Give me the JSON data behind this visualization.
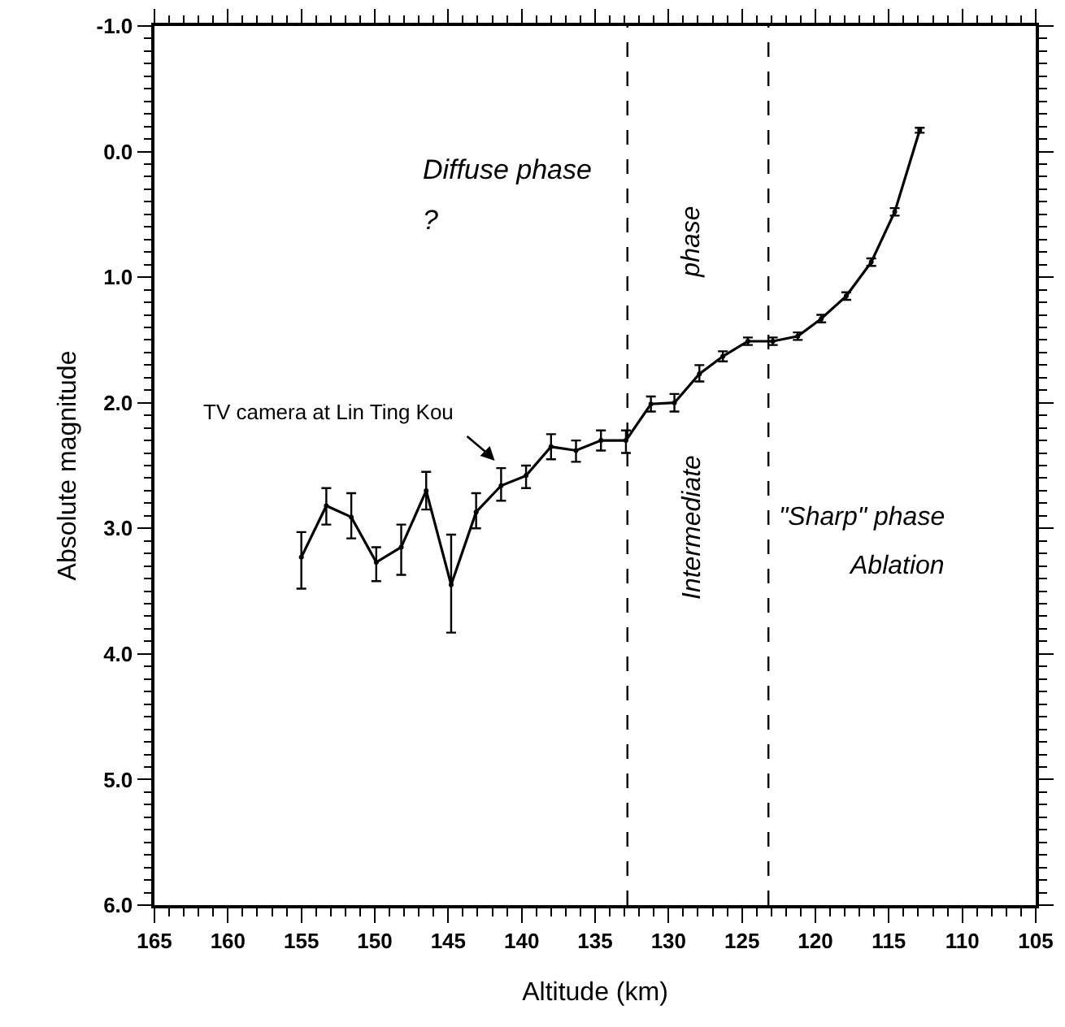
{
  "chart_data": {
    "type": "line",
    "xlabel": "Altitude (km)",
    "ylabel": "Absolute magnitude",
    "x": [
      155,
      153.3,
      151.6,
      149.9,
      148.2,
      146.5,
      144.8,
      143.1,
      141.4,
      139.7,
      138,
      136.3,
      134.6,
      132.9,
      131.2,
      129.6,
      127.9,
      126.3,
      124.6,
      122.9,
      121.2,
      119.6,
      117.9,
      116.2,
      114.6,
      112.9
    ],
    "series": [
      {
        "color": "#000000",
        "values": [
          3.23,
          2.82,
          2.91,
          3.27,
          3.15,
          2.7,
          3.45,
          2.87,
          2.66,
          2.58,
          2.35,
          2.38,
          2.3,
          2.3,
          2.01,
          2.0,
          1.77,
          1.63,
          1.51,
          1.51,
          1.47,
          1.33,
          1.15,
          0.88,
          0.48,
          -0.17
        ],
        "errors": [
          [
            3.03,
            3.48
          ],
          [
            2.68,
            2.97
          ],
          [
            2.72,
            3.08
          ],
          [
            3.15,
            3.42
          ],
          [
            2.97,
            3.37
          ],
          [
            2.55,
            2.85
          ],
          [
            3.05,
            3.83
          ],
          [
            2.72,
            3.0
          ],
          [
            2.52,
            2.78
          ],
          [
            2.5,
            2.68
          ],
          [
            2.25,
            2.45
          ],
          [
            2.3,
            2.47
          ],
          [
            2.22,
            2.38
          ],
          [
            2.22,
            2.4
          ],
          [
            1.95,
            2.07
          ],
          [
            1.93,
            2.07
          ],
          [
            1.7,
            1.83
          ],
          [
            1.59,
            1.67
          ],
          [
            1.48,
            1.54
          ],
          [
            1.48,
            1.54
          ],
          [
            1.44,
            1.5
          ],
          [
            1.3,
            1.36
          ],
          [
            1.12,
            1.18
          ],
          [
            0.85,
            0.91
          ],
          [
            0.45,
            0.51
          ],
          [
            -0.19,
            -0.15
          ]
        ]
      }
    ],
    "xlim": [
      165,
      105
    ],
    "xticks": [
      165,
      160,
      155,
      150,
      145,
      140,
      135,
      130,
      125,
      120,
      115,
      110,
      105
    ],
    "ylim": [
      6.0,
      -1.0
    ],
    "yticks": [
      {
        "value": -1,
        "label": "-1.0"
      },
      {
        "value": 0,
        "label": "0.0"
      },
      {
        "value": 1,
        "label": "1.0"
      },
      {
        "value": 2,
        "label": "2.0"
      },
      {
        "value": 3,
        "label": "3.0"
      },
      {
        "value": 4,
        "label": "4.0"
      },
      {
        "value": 5,
        "label": "5.0"
      },
      {
        "value": 6,
        "label": "6.0"
      }
    ],
    "grid": false,
    "line_style": "solid",
    "marker": "circle",
    "ref_lines": [
      {
        "axis": "x",
        "value": 132.8,
        "line_style": "dashed",
        "color": "#000000"
      },
      {
        "axis": "x",
        "value": 123.2,
        "line_style": "dashed",
        "color": "#000000"
      }
    ],
    "annotations": [
      "Diffuse phase",
      "?",
      "phase",
      "Intermediate",
      "\"Sharp\" phase",
      "Ablation",
      {
        "text": "TV camera at Lin Ting Kou",
        "x": 141.5,
        "y": 2.5
      }
    ]
  }
}
